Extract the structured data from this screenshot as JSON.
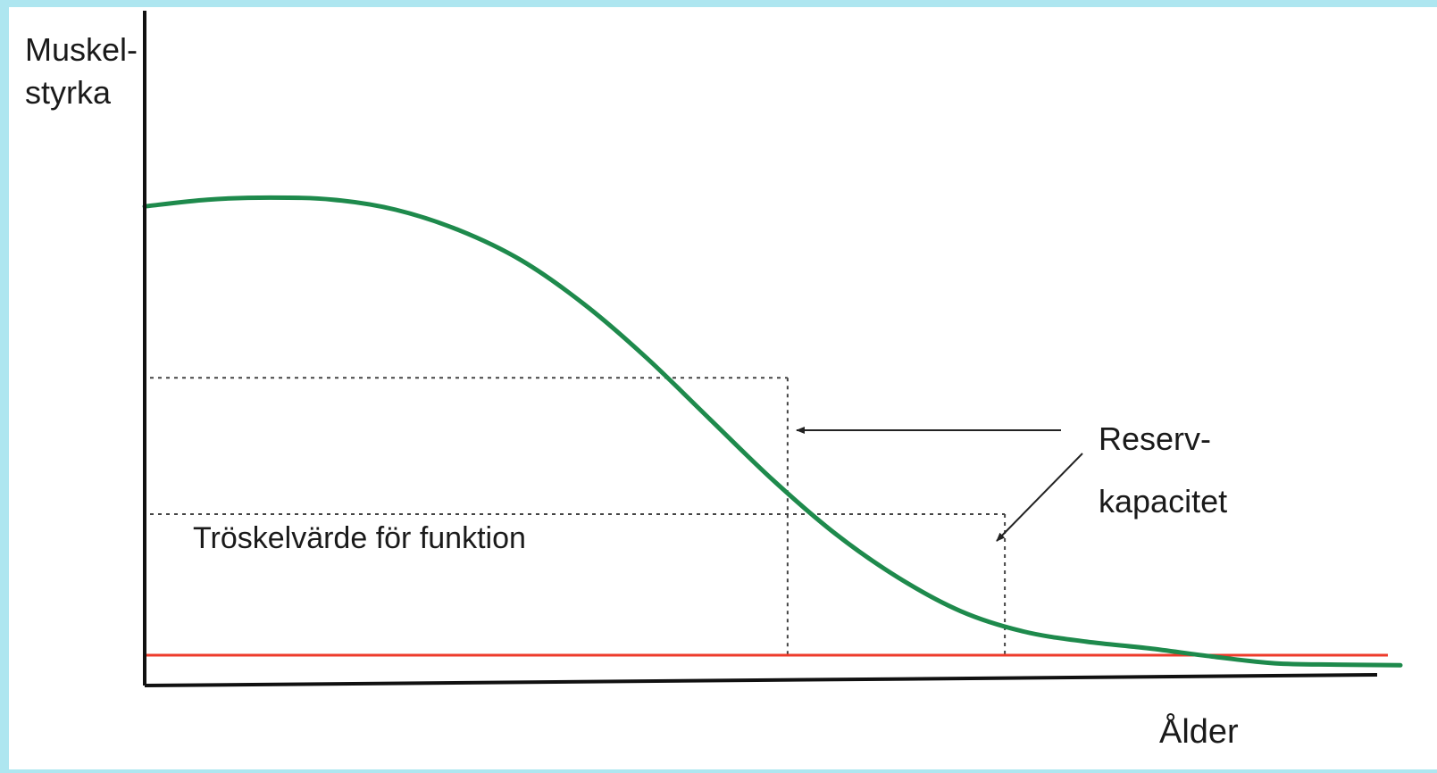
{
  "chart_data": {
    "type": "line",
    "ylabel_lines": [
      "Muskel-",
      "styrka"
    ],
    "xlabel": "Ålder",
    "ylim": [
      0,
      100
    ],
    "xlim": [
      0,
      100
    ],
    "series": [
      {
        "color": "#1e8a4c",
        "points": [
          [
            0,
            71
          ],
          [
            5,
            72
          ],
          [
            10,
            72.3
          ],
          [
            15,
            72
          ],
          [
            20,
            70.5
          ],
          [
            25,
            67.5
          ],
          [
            30,
            63
          ],
          [
            35,
            56.5
          ],
          [
            40,
            48.5
          ],
          [
            45,
            39.5
          ],
          [
            50,
            30.5
          ],
          [
            55,
            22.5
          ],
          [
            60,
            16
          ],
          [
            65,
            11
          ],
          [
            70,
            8
          ],
          [
            75,
            6.5
          ],
          [
            80,
            5.5
          ],
          [
            85,
            4.3
          ],
          [
            90,
            3.3
          ],
          [
            95,
            3.1
          ],
          [
            100,
            3
          ]
        ]
      }
    ],
    "threshold": {
      "label": "Tröskelvärde för funktion",
      "value": 4.5,
      "color": "#ee3b2b"
    },
    "guides": [
      {
        "y": 45.6,
        "x_end": 51.2
      },
      {
        "y": 25.4,
        "x_end": 68.5
      }
    ],
    "annotation": {
      "lines": [
        "Reserv-",
        "kapacitet"
      ]
    }
  }
}
